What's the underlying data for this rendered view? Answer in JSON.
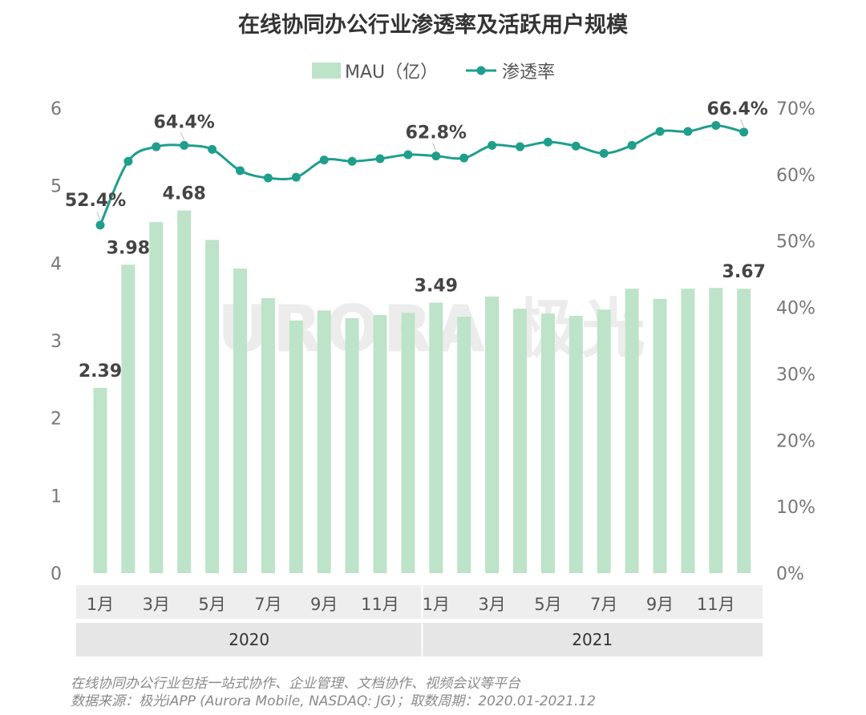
{
  "chart_data": {
    "type": "bar+line",
    "title": "在线协同办公行业渗透率及活跃用户规模",
    "legend": [
      {
        "name": "MAU（亿）",
        "kind": "bar"
      },
      {
        "name": "渗透率",
        "kind": "line"
      }
    ],
    "categories": [
      "2020-01",
      "2020-02",
      "2020-03",
      "2020-04",
      "2020-05",
      "2020-06",
      "2020-07",
      "2020-08",
      "2020-09",
      "2020-10",
      "2020-11",
      "2020-12",
      "2021-01",
      "2021-02",
      "2021-03",
      "2021-04",
      "2021-05",
      "2021-06",
      "2021-07",
      "2021-08",
      "2021-09",
      "2021-10",
      "2021-11",
      "2021-12"
    ],
    "x_tick_labels": [
      "1月",
      "",
      "3月",
      "",
      "5月",
      "",
      "7月",
      "",
      "9月",
      "",
      "11月",
      "",
      "1月",
      "",
      "3月",
      "",
      "5月",
      "",
      "7月",
      "",
      "9月",
      "",
      "11月",
      ""
    ],
    "year_groups": [
      {
        "label": "2020",
        "start": 0,
        "end": 11
      },
      {
        "label": "2021",
        "start": 12,
        "end": 23
      }
    ],
    "series": [
      {
        "name": "MAU（亿）",
        "type": "bar",
        "axis": "left",
        "values": [
          2.39,
          3.98,
          4.53,
          4.68,
          4.3,
          3.93,
          3.55,
          3.26,
          3.39,
          3.29,
          3.33,
          3.36,
          3.49,
          3.31,
          3.57,
          3.41,
          3.35,
          3.32,
          3.4,
          3.67,
          3.54,
          3.67,
          3.68,
          3.67
        ]
      },
      {
        "name": "渗透率",
        "type": "line",
        "axis": "right",
        "unit": "%",
        "values": [
          52.4,
          62.0,
          64.2,
          64.4,
          63.8,
          60.6,
          59.5,
          59.6,
          62.2,
          62.0,
          62.4,
          63.0,
          62.8,
          62.5,
          64.4,
          64.2,
          64.9,
          64.3,
          63.2,
          64.4,
          66.5,
          66.5,
          67.4,
          66.4
        ]
      }
    ],
    "data_labels": {
      "bars": [
        {
          "index": 0,
          "text": "2.39"
        },
        {
          "index": 1,
          "text": "3.98"
        },
        {
          "index": 3,
          "text": "4.68"
        },
        {
          "index": 12,
          "text": "3.49"
        },
        {
          "index": 23,
          "text": "3.67"
        }
      ],
      "line": [
        {
          "index": 0,
          "text": "52.4%"
        },
        {
          "index": 3,
          "text": "64.4%"
        },
        {
          "index": 12,
          "text": "62.8%"
        },
        {
          "index": 23,
          "text": "66.4%"
        }
      ]
    },
    "y_left": {
      "min": 0,
      "max": 6,
      "ticks": [
        "0",
        "1",
        "2",
        "3",
        "4",
        "5",
        "6"
      ]
    },
    "y_right": {
      "min": 0,
      "max": 70,
      "ticks": [
        "0%",
        "10%",
        "20%",
        "30%",
        "40%",
        "50%",
        "60%",
        "70%"
      ]
    },
    "grid": false,
    "legend_position": "top-center",
    "watermark": "URORA 极光"
  },
  "colors": {
    "bar": "#bde3c8",
    "line": "#1f9e8c",
    "year_band": "#e6e6e6"
  },
  "footnote": {
    "line1": "在线协同办公行业包括一站式协作、企业管理、文档协作、视频会议等平台",
    "line2": "数据来源：极光iAPP (Aurora Mobile, NASDAQ: JG)；取数周期：2020.01-2021.12"
  }
}
